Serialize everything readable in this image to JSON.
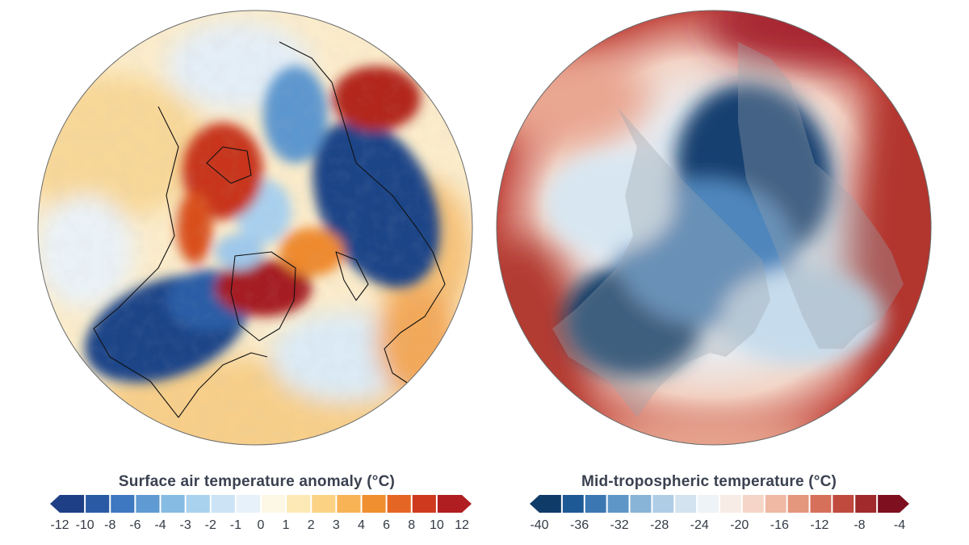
{
  "panels": [
    {
      "id": "surface",
      "colorbar": {
        "title": "Surface air temperature anomaly (°C)",
        "ticks": [
          "-12",
          "-10",
          "-8",
          "-6",
          "-4",
          "-3",
          "-2",
          "-1",
          "0",
          "1",
          "2",
          "3",
          "4",
          "6",
          "8",
          "10",
          "12"
        ],
        "colors": [
          "#1e3f86",
          "#2a5aa4",
          "#3d78c0",
          "#5f9bd2",
          "#86bbe3",
          "#a9d2ef",
          "#cbe3f5",
          "#e6f1fa",
          "#fdf8e6",
          "#fde9b5",
          "#fbd284",
          "#f7b356",
          "#f08f2f",
          "#e56624",
          "#cf3a1e",
          "#b01e22"
        ]
      }
    },
    {
      "id": "midtropo",
      "colorbar": {
        "title": "Mid-tropospheric temperature (°C)",
        "ticks": [
          "-40",
          "-36",
          "-32",
          "-28",
          "-24",
          "-20",
          "-16",
          "-12",
          "-8",
          "-4"
        ],
        "colors": [
          "#0f3b69",
          "#1d5994",
          "#3b78b3",
          "#5e96c8",
          "#88b4d8",
          "#b0cde6",
          "#d3e3f0",
          "#eef3f7",
          "#f8ece6",
          "#f5d5c7",
          "#efb9a3",
          "#e5977d",
          "#d6705a",
          "#c04a3e",
          "#a12a2c",
          "#7d0f1e"
        ]
      }
    }
  ]
}
